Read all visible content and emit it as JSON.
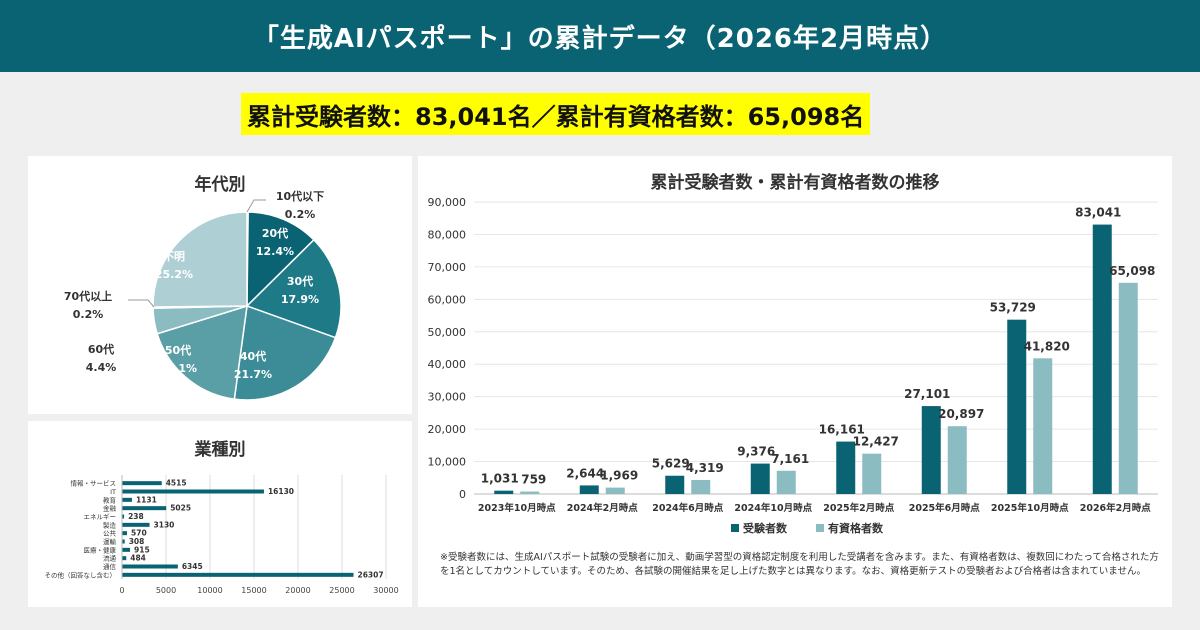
{
  "header": {
    "title": "「生成AIパスポート」の累計データ（2026年2月時点）"
  },
  "summary": {
    "text": "累計受験者数：83,041名／累計有資格者数：65,098名"
  },
  "colors": {
    "dark": "#0a6373",
    "mid1": "#1f7a87",
    "mid2": "#3b8c97",
    "mid3": "#5a9ea6",
    "light1": "#8bbcc2",
    "light2": "#aed0d4",
    "accent": "#ffff00"
  },
  "chart_data": [
    {
      "type": "pie",
      "title": "年代別",
      "slices": [
        {
          "label": "10代以下",
          "value": 0.2,
          "display": "0.2%"
        },
        {
          "label": "20代",
          "value": 12.4,
          "display": "12.4%"
        },
        {
          "label": "30代",
          "value": 17.9,
          "display": "17.9%"
        },
        {
          "label": "40代",
          "value": 21.7,
          "display": "21.7%"
        },
        {
          "label": "50代",
          "value": 18.1,
          "display": "18.1%"
        },
        {
          "label": "60代",
          "value": 4.4,
          "display": "4.4%"
        },
        {
          "label": "70代以上",
          "value": 0.2,
          "display": "0.2%"
        },
        {
          "label": "不明",
          "value": 25.2,
          "display": "25.2%"
        }
      ]
    },
    {
      "type": "bar",
      "orientation": "horizontal",
      "title": "業種別",
      "categories": [
        "情報・サービス",
        "IT",
        "教育",
        "金融",
        "エネルギー",
        "製造",
        "公共",
        "運輸",
        "医療・健康",
        "流通",
        "通信",
        "その他（回答なし含む）"
      ],
      "values": [
        4515,
        16130,
        1131,
        5025,
        238,
        3130,
        570,
        308,
        915,
        484,
        6345,
        26307
      ],
      "xlim": [
        0,
        30000
      ],
      "xticks": [
        "0",
        "5000",
        "10000",
        "15000",
        "20000",
        "25000",
        "30000"
      ]
    },
    {
      "type": "bar",
      "title": "累計受験者数・累計有資格者数の推移",
      "categories": [
        "2023年10月時点",
        "2024年2月時点",
        "2024年6月時点",
        "2024年10月時点",
        "2025年2月時点",
        "2025年6月時点",
        "2025年10月時点",
        "2026年2月時点"
      ],
      "series": [
        {
          "name": "受験者数",
          "values": [
            1031,
            2644,
            5629,
            9376,
            16161,
            27101,
            53729,
            83041
          ],
          "labels": [
            "1,031",
            "2,644",
            "5,629",
            "9,376",
            "16,161",
            "27,101",
            "53,729",
            "83,041"
          ]
        },
        {
          "name": "有資格者数",
          "values": [
            759,
            1969,
            4319,
            7161,
            12427,
            20897,
            41820,
            65098
          ],
          "labels": [
            "759",
            "1,969",
            "4,319",
            "7,161",
            "12,427",
            "20,897",
            "41,820",
            "65,098"
          ]
        }
      ],
      "ylim": [
        0,
        90000
      ],
      "yticks": [
        "0",
        "10,000",
        "20,000",
        "30,000",
        "40,000",
        "50,000",
        "60,000",
        "70,000",
        "80,000",
        "90,000"
      ],
      "note": "※受験者数には、生成AIパスポート試験の受験者に加え、動画学習型の資格認定制度を利用した受講者を含みます。また、有資格者数は、複数回にわたって合格された方を1名としてカウントしています。そのため、各試験の開催結果を足し上げた数字とは異なります。なお、資格更新テストの受験者および合格者は含まれていません。"
    }
  ]
}
